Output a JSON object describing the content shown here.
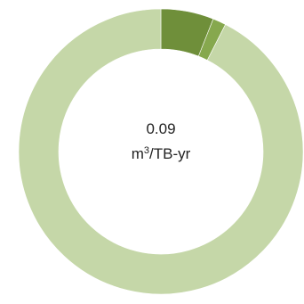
{
  "chart_data": {
    "type": "pie",
    "subtype": "donut",
    "center_text": {
      "value": "0.09",
      "unit_prefix": "m",
      "unit_superscript": "3",
      "unit_suffix": "/TB-yr"
    },
    "slices": [
      {
        "value": 6.0,
        "color": "#6f8f3a"
      },
      {
        "value": 1.5,
        "color": "#86a84e"
      },
      {
        "value": 92.5,
        "color": "#c5d7a8"
      }
    ],
    "legend": "none"
  }
}
